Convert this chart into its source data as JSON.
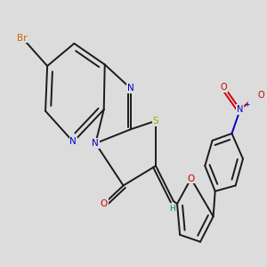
{
  "background_color": "#dcdcdc",
  "bond_color": "#1a1a1a",
  "bond_width": 1.4,
  "dbo": 0.12,
  "atom_colors": {
    "Br": "#cc6600",
    "N": "#0000cc",
    "S": "#aaaa00",
    "O": "#cc0000",
    "H": "#008080",
    "C": "#1a1a1a"
  }
}
